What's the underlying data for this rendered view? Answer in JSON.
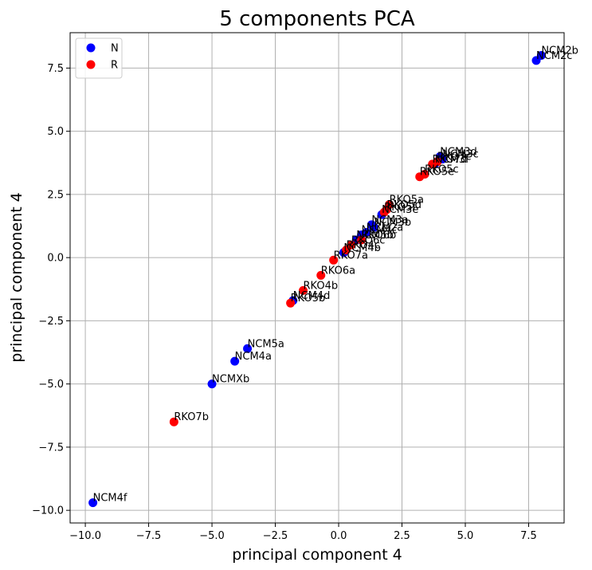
{
  "chart_data": {
    "type": "scatter",
    "title": "5 components PCA",
    "xlabel": "principal component 4",
    "ylabel": "principal component 4",
    "xlim": [
      -10.6,
      8.9
    ],
    "ylim": [
      -10.5,
      8.9
    ],
    "x_ticks": [
      -10.0,
      -7.5,
      -5.0,
      -2.5,
      0.0,
      2.5,
      5.0,
      7.5
    ],
    "y_ticks": [
      -10.0,
      -7.5,
      -5.0,
      -2.5,
      0.0,
      2.5,
      5.0,
      7.5
    ],
    "x_tick_labels": [
      "−10.0",
      "−7.5",
      "−5.0",
      "−2.5",
      "0.0",
      "2.5",
      "5.0",
      "7.5"
    ],
    "y_tick_labels": [
      "−10.0",
      "−7.5",
      "−5.0",
      "−2.5",
      "0.0",
      "2.5",
      "5.0",
      "7.5"
    ],
    "grid": true,
    "legend_position": "top-left",
    "series": [
      {
        "name": "N",
        "color": "#0000ff",
        "points": [
          {
            "x": 8.0,
            "y": 8.0,
            "label": "NCM2b"
          },
          {
            "x": 7.8,
            "y": 7.8,
            "label": "NCM2c"
          },
          {
            "x": 4.0,
            "y": 4.0,
            "label": "NCM3d"
          },
          {
            "x": 4.1,
            "y": 3.9,
            "label": "NCM3c"
          },
          {
            "x": 3.8,
            "y": 3.7,
            "label": "NCM3f"
          },
          {
            "x": 1.7,
            "y": 1.7,
            "label": "NCM3e"
          },
          {
            "x": 1.3,
            "y": 1.3,
            "label": "NCM3a"
          },
          {
            "x": 1.4,
            "y": 1.2,
            "label": "NCM3b"
          },
          {
            "x": 1.1,
            "y": 1.0,
            "label": "NCM2a"
          },
          {
            "x": 0.9,
            "y": 0.9,
            "label": "NCM4c"
          },
          {
            "x": 0.7,
            "y": 0.7,
            "label": "NCM5b"
          },
          {
            "x": 0.2,
            "y": 0.2,
            "label": "NCM4b"
          },
          {
            "x": -1.8,
            "y": -1.7,
            "label": "NCM4d"
          },
          {
            "x": -3.6,
            "y": -3.6,
            "label": "NCM5a"
          },
          {
            "x": -4.1,
            "y": -4.1,
            "label": "NCM4a"
          },
          {
            "x": -5.0,
            "y": -5.0,
            "label": "NCMXb"
          },
          {
            "x": -9.7,
            "y": -9.7,
            "label": "NCM4f"
          }
        ]
      },
      {
        "name": "R",
        "color": "#ff0000",
        "points": [
          {
            "x": 3.9,
            "y": 3.8,
            "label": "RKO7c"
          },
          {
            "x": 3.7,
            "y": 3.7,
            "label": "RKO7d"
          },
          {
            "x": 3.4,
            "y": 3.3,
            "label": "RKO5c"
          },
          {
            "x": 3.2,
            "y": 3.2,
            "label": "RKO5e"
          },
          {
            "x": 2.0,
            "y": 2.1,
            "label": "RKO5a"
          },
          {
            "x": 1.9,
            "y": 1.9,
            "label": "RKO5d"
          },
          {
            "x": 1.8,
            "y": 1.8,
            "label": "RKO5f"
          },
          {
            "x": 0.9,
            "y": 0.7,
            "label": "RKO6b"
          },
          {
            "x": 0.5,
            "y": 0.5,
            "label": "RKO6c"
          },
          {
            "x": 0.3,
            "y": 0.3,
            "label": "RKO4c"
          },
          {
            "x": -0.2,
            "y": -0.1,
            "label": "RKO7a"
          },
          {
            "x": -0.7,
            "y": -0.7,
            "label": "RKO6a"
          },
          {
            "x": -1.4,
            "y": -1.3,
            "label": "RKO4b"
          },
          {
            "x": -1.9,
            "y": -1.8,
            "label": "RKO5b"
          },
          {
            "x": -6.5,
            "y": -6.5,
            "label": "RKO7b"
          }
        ]
      }
    ]
  }
}
